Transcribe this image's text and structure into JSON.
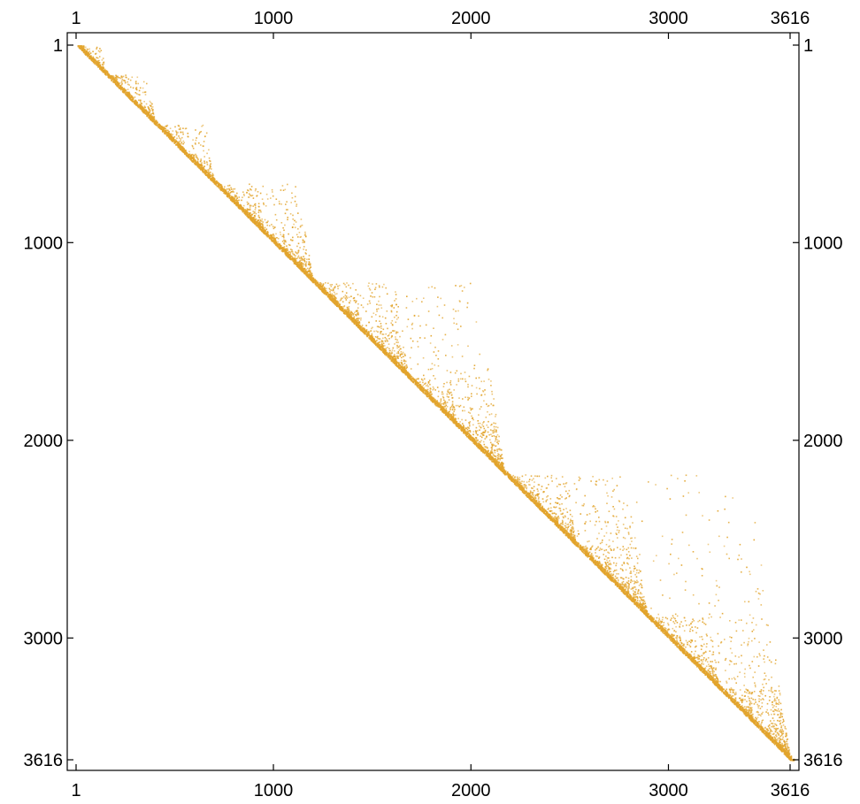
{
  "chart_data": {
    "type": "heatmap",
    "title": "",
    "xlabel": "",
    "ylabel": "",
    "matrix_size": 3616,
    "xlim": [
      1,
      3616
    ],
    "ylim": [
      1,
      3616
    ],
    "y_axis_inverted": true,
    "pattern": "upper-triangular sparse pattern along the main diagonal with recursive self-similar triangular blocks",
    "x_ticks": [
      {
        "value": 1,
        "label": "1"
      },
      {
        "value": 1000,
        "label": "1000"
      },
      {
        "value": 2000,
        "label": "2000"
      },
      {
        "value": 3000,
        "label": "3000"
      },
      {
        "value": 3616,
        "label": "3616"
      }
    ],
    "y_ticks": [
      {
        "value": 1,
        "label": "1"
      },
      {
        "value": 1000,
        "label": "1000"
      },
      {
        "value": 2000,
        "label": "2000"
      },
      {
        "value": 3000,
        "label": "3000"
      },
      {
        "value": 3616,
        "label": "3616"
      }
    ],
    "blocks": [
      {
        "start": 1,
        "end": 150
      },
      {
        "start": 150,
        "end": 400
      },
      {
        "start": 400,
        "end": 700
      },
      {
        "start": 700,
        "end": 1200
      },
      {
        "start": 1200,
        "end": 2170
      },
      {
        "start": 2170,
        "end": 3616
      }
    ],
    "grid": false,
    "legend": "none",
    "colors": {
      "nonzero": "#e2a42c",
      "frame": "#000000",
      "background": "#ffffff"
    }
  }
}
